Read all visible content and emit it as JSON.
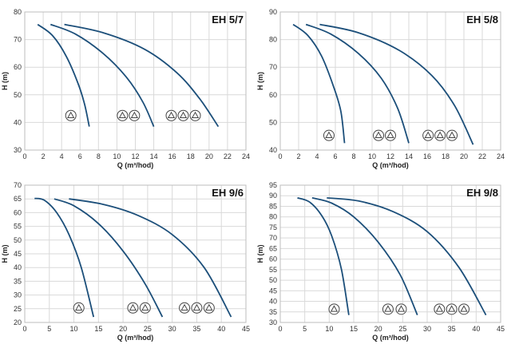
{
  "chart_data": [
    {
      "type": "line",
      "title": "EH 5/7",
      "xlabel": "Q (m³/hod)",
      "ylabel": "H (m)",
      "xlim": [
        0,
        24
      ],
      "ylim": [
        30,
        80
      ],
      "xticks": [
        0,
        2,
        4,
        6,
        8,
        10,
        12,
        14,
        16,
        18,
        20,
        22,
        24
      ],
      "yticks": [
        30,
        40,
        50,
        60,
        70,
        80
      ],
      "grid": true,
      "series": [
        {
          "points": [
            [
              1.4,
              75.5
            ],
            [
              3.0,
              71.5
            ],
            [
              4.5,
              64
            ],
            [
              5.8,
              54
            ],
            [
              6.5,
              46.5
            ],
            [
              7.0,
              38.5
            ]
          ]
        },
        {
          "points": [
            [
              2.8,
              75.5
            ],
            [
              5.5,
              72
            ],
            [
              8.5,
              65
            ],
            [
              11.0,
              56.5
            ],
            [
              12.8,
              47.5
            ],
            [
              14.0,
              38.5
            ]
          ]
        },
        {
          "points": [
            [
              4.3,
              75.5
            ],
            [
              8.5,
              72.5
            ],
            [
              13.0,
              66.5
            ],
            [
              16.5,
              58
            ],
            [
              19.0,
              48.5
            ],
            [
              21.0,
              38.5
            ]
          ]
        }
      ],
      "badges": [
        {
          "x": 5.0,
          "y": 42.5
        },
        {
          "x": 10.6,
          "y": 42.5
        },
        {
          "x": 11.9,
          "y": 42.5
        },
        {
          "x": 15.9,
          "y": 42.5
        },
        {
          "x": 17.2,
          "y": 42.5
        },
        {
          "x": 18.5,
          "y": 42.5
        }
      ]
    },
    {
      "type": "line",
      "title": "EH 5/8",
      "xlabel": "Q (m³/hod)",
      "ylabel": "H (m)",
      "xlim": [
        0,
        24
      ],
      "ylim": [
        40,
        90
      ],
      "xticks": [
        0,
        2,
        4,
        6,
        8,
        10,
        12,
        14,
        16,
        18,
        20,
        22,
        24
      ],
      "yticks": [
        40,
        50,
        60,
        70,
        80,
        90
      ],
      "grid": true,
      "series": [
        {
          "points": [
            [
              1.4,
              85.5
            ],
            [
              3.0,
              81.5
            ],
            [
              4.5,
              74
            ],
            [
              5.8,
              63
            ],
            [
              6.6,
              54
            ],
            [
              7.0,
              42.5
            ]
          ]
        },
        {
          "points": [
            [
              2.8,
              85.5
            ],
            [
              5.5,
              82
            ],
            [
              8.5,
              75
            ],
            [
              11.0,
              66
            ],
            [
              12.8,
              55
            ],
            [
              14.0,
              42.5
            ]
          ]
        },
        {
          "points": [
            [
              4.3,
              85.5
            ],
            [
              8.5,
              82.5
            ],
            [
              13.0,
              76
            ],
            [
              16.5,
              67
            ],
            [
              19.0,
              56
            ],
            [
              21.0,
              42
            ]
          ]
        }
      ],
      "badges": [
        {
          "x": 5.3,
          "y": 45.3
        },
        {
          "x": 10.7,
          "y": 45.3
        },
        {
          "x": 12.0,
          "y": 45.3
        },
        {
          "x": 16.1,
          "y": 45.3
        },
        {
          "x": 17.4,
          "y": 45.3
        },
        {
          "x": 18.7,
          "y": 45.3
        }
      ]
    },
    {
      "type": "line",
      "title": "EH 9/6",
      "xlabel": "Q (m³/hod)",
      "ylabel": "H (m)",
      "xlim": [
        0,
        45
      ],
      "ylim": [
        20,
        70
      ],
      "xticks": [
        0,
        5,
        10,
        15,
        20,
        25,
        30,
        35,
        40,
        45
      ],
      "yticks": [
        20,
        25,
        30,
        35,
        40,
        45,
        50,
        55,
        60,
        65,
        70
      ],
      "grid": true,
      "series": [
        {
          "points": [
            [
              2.0,
              65.2
            ],
            [
              4.0,
              64.5
            ],
            [
              6.5,
              60
            ],
            [
              9.0,
              52
            ],
            [
              11.5,
              40
            ],
            [
              14.0,
              22
            ]
          ]
        },
        {
          "points": [
            [
              6.0,
              65
            ],
            [
              10.0,
              62.5
            ],
            [
              15.0,
              56
            ],
            [
              20.0,
              46
            ],
            [
              24.5,
              34
            ],
            [
              28.0,
              22
            ]
          ]
        },
        {
          "points": [
            [
              9.0,
              65
            ],
            [
              16.0,
              63
            ],
            [
              23.0,
              59
            ],
            [
              30.0,
              52
            ],
            [
              36.5,
              40
            ],
            [
              42.0,
              22
            ]
          ]
        }
      ],
      "badges": [
        {
          "x": 11.0,
          "y": 25.3
        },
        {
          "x": 22.0,
          "y": 25.3
        },
        {
          "x": 24.5,
          "y": 25.3
        },
        {
          "x": 32.5,
          "y": 25.3
        },
        {
          "x": 35.0,
          "y": 25.3
        },
        {
          "x": 37.5,
          "y": 25.3
        }
      ]
    },
    {
      "type": "line",
      "title": "EH 9/8",
      "xlabel": "Q (m³/hod)",
      "ylabel": "H (m)",
      "xlim": [
        0,
        45
      ],
      "ylim": [
        30,
        95
      ],
      "xticks": [
        0,
        5,
        10,
        15,
        20,
        25,
        30,
        35,
        40,
        45
      ],
      "yticks": [
        30,
        35,
        40,
        45,
        50,
        55,
        60,
        65,
        70,
        75,
        80,
        85,
        90,
        95
      ],
      "grid": true,
      "series": [
        {
          "points": [
            [
              3.5,
              89
            ],
            [
              6.0,
              87
            ],
            [
              8.5,
              80.5
            ],
            [
              10.5,
              71
            ],
            [
              12.5,
              55
            ],
            [
              14.0,
              33.5
            ]
          ]
        },
        {
          "points": [
            [
              6.5,
              89
            ],
            [
              10.5,
              86.5
            ],
            [
              15.0,
              80
            ],
            [
              20.0,
              68
            ],
            [
              24.5,
              52.5
            ],
            [
              28.0,
              33.5
            ]
          ]
        },
        {
          "points": [
            [
              9.5,
              89
            ],
            [
              16.0,
              87.5
            ],
            [
              23.0,
              82.5
            ],
            [
              30.0,
              73
            ],
            [
              36.5,
              56
            ],
            [
              42.0,
              33.5
            ]
          ]
        }
      ],
      "badges": [
        {
          "x": 11.0,
          "y": 36.3
        },
        {
          "x": 22.0,
          "y": 36.3
        },
        {
          "x": 24.7,
          "y": 36.3
        },
        {
          "x": 32.5,
          "y": 36.3
        },
        {
          "x": 35.0,
          "y": 36.3
        },
        {
          "x": 37.5,
          "y": 36.3
        }
      ]
    }
  ]
}
